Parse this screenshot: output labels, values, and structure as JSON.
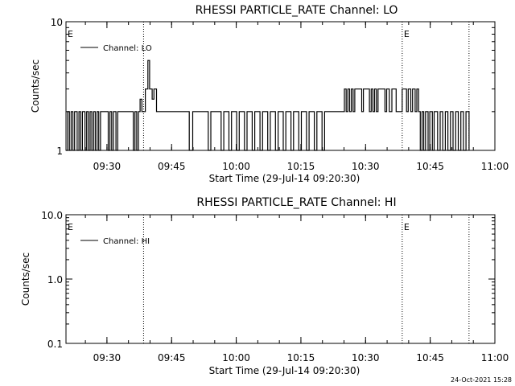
{
  "footer_timestamp": "24-Oct-2021 15:28",
  "chart_data": [
    {
      "type": "line",
      "title": "RHESSI PARTICLE_RATE Channel: LO",
      "xlabel": "Start Time (29-Jul-14 09:20:30)",
      "ylabel": "Counts/sec",
      "yscale": "log",
      "ylim": [
        1,
        10
      ],
      "xlim": [
        "09:20:30",
        "11:00:00"
      ],
      "x_ticks": [
        "09:30",
        "09:45",
        "10:00",
        "10:15",
        "10:30",
        "10:45",
        "11:00"
      ],
      "y_ticks": [
        "1",
        "10"
      ],
      "legend": "top-left",
      "event_lines": [
        "09:38:30",
        "10:38:30",
        "10:54:00"
      ],
      "event_markers": [
        {
          "label": "E",
          "at": "09:20:30"
        },
        {
          "label": "E",
          "at": "10:38:30"
        }
      ],
      "series": [
        {
          "name": "Channel: LO",
          "points": [
            [
              "09:20:30",
              1
            ],
            [
              "09:20:54",
              2
            ],
            [
              "09:21:18",
              1
            ],
            [
              "09:21:42",
              2
            ],
            [
              "09:22:06",
              1
            ],
            [
              "09:22:30",
              2
            ],
            [
              "09:23:06",
              1
            ],
            [
              "09:23:30",
              2
            ],
            [
              "09:23:54",
              1
            ],
            [
              "09:24:18",
              2
            ],
            [
              "09:24:54",
              1
            ],
            [
              "09:25:18",
              2
            ],
            [
              "09:25:42",
              1
            ],
            [
              "09:26:06",
              2
            ],
            [
              "09:26:30",
              1
            ],
            [
              "09:26:54",
              2
            ],
            [
              "09:27:18",
              1
            ],
            [
              "09:27:42",
              2
            ],
            [
              "09:28:06",
              1
            ],
            [
              "09:28:30",
              2
            ],
            [
              "09:30:18",
              1
            ],
            [
              "09:30:42",
              2
            ],
            [
              "09:31:06",
              1
            ],
            [
              "09:31:30",
              2
            ],
            [
              "09:32:06",
              1
            ],
            [
              "09:32:30",
              2
            ],
            [
              "09:36:06",
              1
            ],
            [
              "09:36:30",
              2
            ],
            [
              "09:36:54",
              1
            ],
            [
              "09:37:18",
              2
            ],
            [
              "09:37:42",
              2.5
            ],
            [
              "09:38:06",
              2
            ],
            [
              "09:38:30",
              2
            ],
            [
              "09:38:54",
              3
            ],
            [
              "09:39:30",
              5
            ],
            [
              "09:39:54",
              3
            ],
            [
              "09:40:30",
              2.5
            ],
            [
              "09:40:54",
              3
            ],
            [
              "09:41:30",
              2
            ],
            [
              "09:48:30",
              2
            ],
            [
              "09:49:06",
              1
            ],
            [
              "09:49:54",
              2
            ],
            [
              "09:53:06",
              2
            ],
            [
              "09:53:30",
              1
            ],
            [
              "09:54:06",
              2
            ],
            [
              "09:55:54",
              2
            ],
            [
              "09:56:30",
              1
            ],
            [
              "09:57:06",
              2
            ],
            [
              "09:58:18",
              1
            ],
            [
              "09:58:54",
              2
            ],
            [
              "10:00:06",
              1
            ],
            [
              "10:00:42",
              2
            ],
            [
              "10:01:54",
              1
            ],
            [
              "10:02:30",
              2
            ],
            [
              "10:03:42",
              1
            ],
            [
              "10:04:18",
              2
            ],
            [
              "10:05:30",
              1
            ],
            [
              "10:06:06",
              2
            ],
            [
              "10:07:18",
              1
            ],
            [
              "10:07:54",
              2
            ],
            [
              "10:09:06",
              1
            ],
            [
              "10:09:42",
              2
            ],
            [
              "10:10:54",
              1
            ],
            [
              "10:11:30",
              2
            ],
            [
              "10:12:42",
              1
            ],
            [
              "10:13:18",
              2
            ],
            [
              "10:14:30",
              1
            ],
            [
              "10:15:06",
              2
            ],
            [
              "10:16:18",
              1
            ],
            [
              "10:16:54",
              2
            ],
            [
              "10:18:06",
              1
            ],
            [
              "10:18:42",
              2
            ],
            [
              "10:19:54",
              1
            ],
            [
              "10:20:30",
              2
            ],
            [
              "10:24:30",
              2
            ],
            [
              "10:25:06",
              3
            ],
            [
              "10:25:30",
              2
            ],
            [
              "10:25:54",
              3
            ],
            [
              "10:26:18",
              2
            ],
            [
              "10:26:42",
              3
            ],
            [
              "10:27:06",
              2
            ],
            [
              "10:27:30",
              3
            ],
            [
              "10:29:06",
              2
            ],
            [
              "10:29:30",
              3
            ],
            [
              "10:30:54",
              2
            ],
            [
              "10:31:18",
              3
            ],
            [
              "10:31:42",
              2
            ],
            [
              "10:32:06",
              3
            ],
            [
              "10:32:30",
              2
            ],
            [
              "10:32:54",
              3
            ],
            [
              "10:34:30",
              2
            ],
            [
              "10:34:54",
              3
            ],
            [
              "10:35:30",
              2
            ],
            [
              "10:36:06",
              3
            ],
            [
              "10:37:06",
              2
            ],
            [
              "10:38:06",
              2
            ],
            [
              "10:38:30",
              3
            ],
            [
              "10:39:30",
              2
            ],
            [
              "10:39:54",
              3
            ],
            [
              "10:40:30",
              2
            ],
            [
              "10:40:54",
              3
            ],
            [
              "10:41:30",
              2
            ],
            [
              "10:41:54",
              3
            ],
            [
              "10:42:18",
              2
            ],
            [
              "10:42:42",
              1
            ],
            [
              "10:43:06",
              2
            ],
            [
              "10:43:30",
              1
            ],
            [
              "10:43:54",
              2
            ],
            [
              "10:44:30",
              1
            ],
            [
              "10:44:54",
              2
            ],
            [
              "10:45:30",
              1
            ],
            [
              "10:45:54",
              2
            ],
            [
              "10:46:42",
              1
            ],
            [
              "10:47:18",
              2
            ],
            [
              "10:47:54",
              1
            ],
            [
              "10:48:30",
              2
            ],
            [
              "10:49:06",
              1
            ],
            [
              "10:49:42",
              2
            ],
            [
              "10:50:18",
              1
            ],
            [
              "10:50:54",
              2
            ],
            [
              "10:51:30",
              1
            ],
            [
              "10:52:06",
              2
            ],
            [
              "10:52:42",
              1
            ],
            [
              "10:53:18",
              2
            ],
            [
              "10:54:00",
              1
            ]
          ]
        }
      ]
    },
    {
      "type": "line",
      "title": "RHESSI PARTICLE_RATE Channel: HI",
      "xlabel": "Start Time (29-Jul-14 09:20:30)",
      "ylabel": "Counts/sec",
      "yscale": "log",
      "ylim": [
        0.1,
        10
      ],
      "xlim": [
        "09:20:30",
        "11:00:00"
      ],
      "x_ticks": [
        "09:30",
        "09:45",
        "10:00",
        "10:15",
        "10:30",
        "10:45",
        "11:00"
      ],
      "y_ticks": [
        "0.1",
        "1.0",
        "10.0"
      ],
      "legend": "top-left",
      "event_lines": [
        "09:38:30",
        "10:38:30",
        "10:54:00"
      ],
      "event_markers": [
        {
          "label": "E",
          "at": "09:20:30"
        },
        {
          "label": "E",
          "at": "10:38:30"
        }
      ],
      "series": [
        {
          "name": "Channel: HI",
          "points": []
        }
      ]
    }
  ]
}
